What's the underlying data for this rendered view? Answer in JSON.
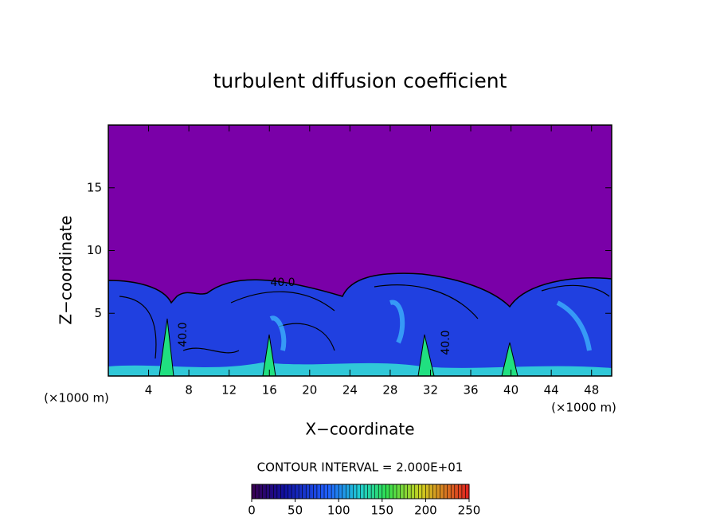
{
  "chart_data": {
    "type": "contour",
    "title": "turbulent diffusion coefficient",
    "xlabel": "X−coordinate",
    "ylabel": "Z−coordinate",
    "x_unit_left": "(×1000 m)",
    "x_unit_right": "(×1000 m)",
    "xlim": [
      0,
      50
    ],
    "xticks": [
      4,
      8,
      12,
      16,
      20,
      24,
      28,
      32,
      36,
      40,
      44,
      48
    ],
    "ylim": [
      0,
      20
    ],
    "yticks": [
      5,
      10,
      15
    ],
    "contour_labels": [
      "40.0",
      "40.0",
      "40.0"
    ],
    "colorbar": {
      "label": "CONTOUR INTERVAL = 2.000E+01",
      "lim": [
        0,
        250
      ],
      "ticks": [
        0,
        50,
        100,
        150,
        200,
        250
      ]
    }
  }
}
